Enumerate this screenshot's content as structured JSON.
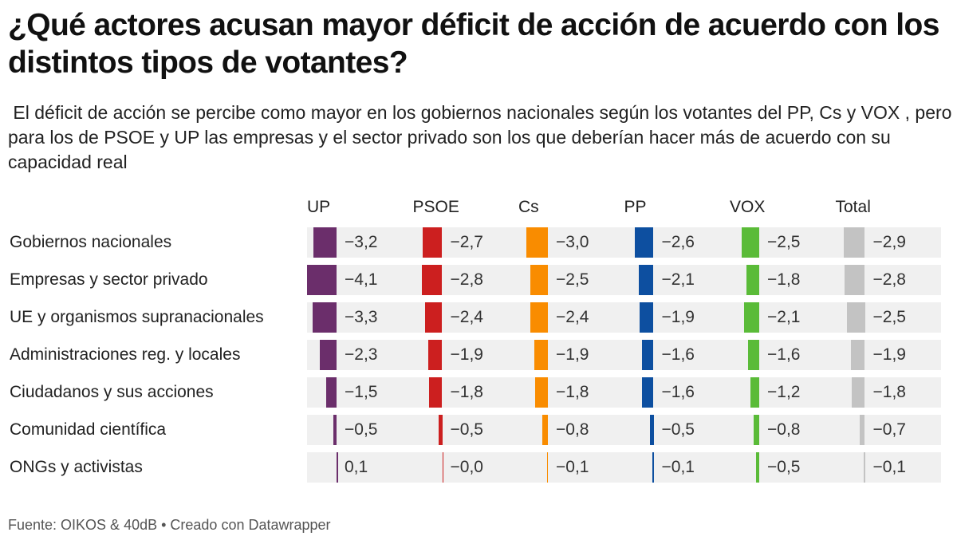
{
  "title": "¿Qué actores acusan mayor déficit de acción de acuerdo con los distintos tipos de votantes?",
  "subtitle": " El déficit de acción se percibe como mayor en los gobiernos nacionales según los votantes del PP, Cs y VOX , pero para los de PSOE y UP las empresas y el sector privado son los que deberían hacer más de acuerdo con su capacidad real",
  "footer": "Fuente: OIKOS & 40dB • Creado con Datawrapper",
  "chart_data": {
    "type": "bar",
    "orientation": "horizontal",
    "layout": "small-multiples-table",
    "title": "¿Qué actores acusan mayor déficit de acción de acuerdo con los distintos tipos de votantes?",
    "categories": [
      "Gobiernos nacionales",
      "Empresas y sector privado",
      "UE y organismos supranacionales",
      "Administraciones reg. y locales",
      "Ciudadanos y sus acciones",
      "Comunidad científica",
      "ONGs y activistas"
    ],
    "series": [
      {
        "name": "UP",
        "color": "#6b2e6b",
        "values": [
          -3.2,
          -4.1,
          -3.3,
          -2.3,
          -1.5,
          -0.5,
          0.1
        ],
        "labels": [
          "−3,2",
          "−4,1",
          "−3,3",
          "−2,3",
          "−1,5",
          "−0,5",
          "0,1"
        ]
      },
      {
        "name": "PSOE",
        "color": "#cc1f1f",
        "values": [
          -2.7,
          -2.8,
          -2.4,
          -1.9,
          -1.8,
          -0.5,
          -0.0
        ],
        "labels": [
          "−2,7",
          "−2,8",
          "−2,4",
          "−1,9",
          "−1,8",
          "−0,5",
          "−0,0"
        ]
      },
      {
        "name": "Cs",
        "color": "#f98c00",
        "values": [
          -3.0,
          -2.5,
          -2.4,
          -1.9,
          -1.8,
          -0.8,
          -0.1
        ],
        "labels": [
          "−3,0",
          "−2,5",
          "−2,4",
          "−1,9",
          "−1,8",
          "−0,8",
          "−0,1"
        ]
      },
      {
        "name": "PP",
        "color": "#0d4fa0",
        "values": [
          -2.6,
          -2.1,
          -1.9,
          -1.6,
          -1.6,
          -0.5,
          -0.1
        ],
        "labels": [
          "−2,6",
          "−2,1",
          "−1,9",
          "−1,6",
          "−1,6",
          "−0,5",
          "−0,1"
        ]
      },
      {
        "name": "VOX",
        "color": "#5abb38",
        "values": [
          -2.5,
          -1.8,
          -2.1,
          -1.6,
          -1.2,
          -0.8,
          -0.5
        ],
        "labels": [
          "−2,5",
          "−1,8",
          "−2,1",
          "−1,6",
          "−1,2",
          "−0,8",
          "−0,5"
        ]
      },
      {
        "name": "Total",
        "color": "#c3c3c3",
        "values": [
          -2.9,
          -2.8,
          -2.5,
          -1.9,
          -1.8,
          -0.7,
          -0.1
        ],
        "labels": [
          "−2,9",
          "−2,8",
          "−2,5",
          "−1,9",
          "−1,8",
          "−0,7",
          "−0,1"
        ]
      }
    ],
    "xlabel": "",
    "ylabel": "",
    "xlim": [
      -4.1,
      0.1
    ],
    "grid": false,
    "legend": "column-headers-top"
  }
}
